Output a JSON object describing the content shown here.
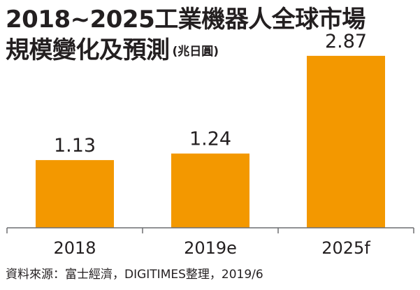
{
  "title": {
    "line1": "2018~2025工業機器人全球市場",
    "line2": "規模變化及預測",
    "unit": "(兆日圓)"
  },
  "source": "資料來源：富士經濟，DIGITIMES整理，2019/6",
  "colors": {
    "bar": "#f39800",
    "axis": "#6d6e71",
    "text": "#231f20"
  },
  "chart_data": {
    "type": "bar",
    "title": "2018~2025工業機器人全球市場規模變化及預測",
    "unit": "(兆日圓)",
    "categories": [
      "2018",
      "2019e",
      "2025f"
    ],
    "values": [
      1.13,
      1.24,
      2.87
    ],
    "data_labels": [
      "1.13",
      "1.24",
      "2.87"
    ],
    "ylim": [
      0,
      3.3
    ],
    "grid": false,
    "legend": "none"
  }
}
